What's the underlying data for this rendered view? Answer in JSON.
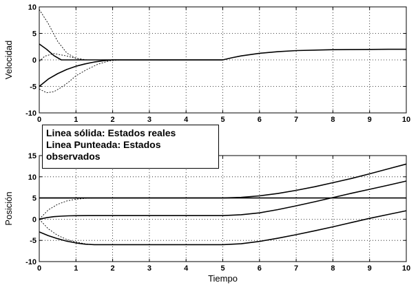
{
  "legend": {
    "lines": [
      "Linea sólida: Estados reales",
      "Linea Punteada: Estados",
      "observados"
    ]
  },
  "chart_data": [
    {
      "type": "line",
      "title": "",
      "xlabel": "",
      "ylabel": "Velocidad",
      "xlim": [
        0,
        10
      ],
      "ylim": [
        -10,
        10
      ],
      "xticks": [
        "0",
        "1",
        "2",
        "3",
        "4",
        "5",
        "6",
        "7",
        "8",
        "9",
        "10"
      ],
      "yticks": [
        "10",
        "5",
        "0",
        "-5",
        "-10"
      ],
      "grid": true,
      "series": [
        {
          "style": "solid",
          "x": [
            0,
            0.2,
            0.4,
            0.6,
            0.7,
            1,
            2,
            5
          ],
          "y": [
            3,
            2,
            0.8,
            0,
            0,
            0,
            0,
            0
          ]
        },
        {
          "style": "solid",
          "x": [
            0,
            0.25,
            0.5,
            0.75,
            1,
            1.25,
            1.5,
            1.75,
            2,
            2.25,
            5,
            5.25,
            5.5,
            6,
            6.5,
            7,
            7.5,
            8,
            8.5,
            9,
            9.5,
            10
          ],
          "y": [
            -5,
            -3.6,
            -2.6,
            -1.8,
            -1.2,
            -0.75,
            -0.4,
            -0.15,
            0,
            0,
            0,
            0.4,
            0.75,
            1.25,
            1.55,
            1.75,
            1.85,
            1.92,
            1.96,
            1.98,
            2,
            2
          ]
        },
        {
          "style": "dotted",
          "x": [
            0,
            0.25,
            0.5,
            0.75,
            1,
            1.25,
            1.5,
            1.75,
            2,
            2.5,
            3
          ],
          "y": [
            9.5,
            6.8,
            3.5,
            1.3,
            0.3,
            0,
            0,
            0,
            0,
            0,
            0
          ]
        },
        {
          "style": "dotted",
          "x": [
            0,
            0.2,
            0.4,
            0.6,
            0.8,
            1,
            1.3,
            1.6,
            1.9,
            2.2,
            2.5
          ],
          "y": [
            -5.5,
            -6.2,
            -6,
            -5.2,
            -4.2,
            -3,
            -1.8,
            -0.8,
            -0.2,
            0,
            0
          ]
        },
        {
          "style": "dotted",
          "x": [
            0,
            0.15,
            0.4,
            0.7,
            1,
            1.3,
            1.6
          ],
          "y": [
            -0.3,
            0.7,
            1.2,
            0.8,
            0.3,
            0,
            0
          ]
        }
      ]
    },
    {
      "type": "line",
      "title": "",
      "xlabel": "Tiempo",
      "ylabel": "Posición",
      "xlim": [
        0,
        10
      ],
      "ylim": [
        -10,
        15
      ],
      "xticks": [
        "0",
        "1",
        "2",
        "3",
        "4",
        "5",
        "6",
        "7",
        "8",
        "9",
        "10"
      ],
      "yticks": [
        "15",
        "10",
        "5",
        "0",
        "-5",
        "-10"
      ],
      "grid": true,
      "series": [
        {
          "style": "solid",
          "x": [
            0,
            10
          ],
          "y": [
            5,
            5
          ]
        },
        {
          "style": "solid",
          "x": [
            0,
            5,
            5.5,
            6,
            6.5,
            7,
            7.5,
            8,
            8.5,
            9,
            9.5,
            10
          ],
          "y": [
            5,
            5,
            5.15,
            5.5,
            6.05,
            6.8,
            7.65,
            8.6,
            9.6,
            10.7,
            11.85,
            13
          ]
        },
        {
          "style": "solid",
          "x": [
            0,
            0.2,
            0.4,
            0.6,
            0.8,
            1,
            1.5,
            2,
            5,
            5.5,
            6,
            6.5,
            7,
            7.5,
            8,
            8.5,
            9,
            9.5,
            10
          ],
          "y": [
            0,
            0.35,
            0.6,
            0.72,
            0.8,
            0.82,
            0.85,
            0.85,
            0.85,
            1.05,
            1.5,
            2.25,
            3.15,
            4.1,
            5.1,
            6.1,
            7.05,
            8,
            9
          ]
        },
        {
          "style": "solid",
          "x": [
            0,
            0.25,
            0.5,
            0.75,
            1,
            1.25,
            1.5,
            2,
            5,
            5.5,
            6,
            6.5,
            7,
            7.5,
            8,
            8.5,
            9,
            9.5,
            10
          ],
          "y": [
            -3,
            -3.9,
            -4.6,
            -5.2,
            -5.6,
            -5.9,
            -6,
            -6,
            -6,
            -5.8,
            -5.25,
            -4.5,
            -3.65,
            -2.75,
            -1.8,
            -0.8,
            0.2,
            1.1,
            2
          ]
        },
        {
          "style": "dotted",
          "x": [
            0,
            0.25,
            0.5,
            0.75,
            1,
            1.25,
            1.5,
            2
          ],
          "y": [
            0,
            2.2,
            3.5,
            4.3,
            4.7,
            4.9,
            5,
            5
          ]
        },
        {
          "style": "dotted",
          "x": [
            0,
            0.25,
            0.5,
            0.75,
            1,
            1.25,
            1.5,
            2
          ],
          "y": [
            0,
            -2.3,
            -3.8,
            -4.8,
            -5.4,
            -5.8,
            -6,
            -6
          ]
        }
      ]
    }
  ]
}
